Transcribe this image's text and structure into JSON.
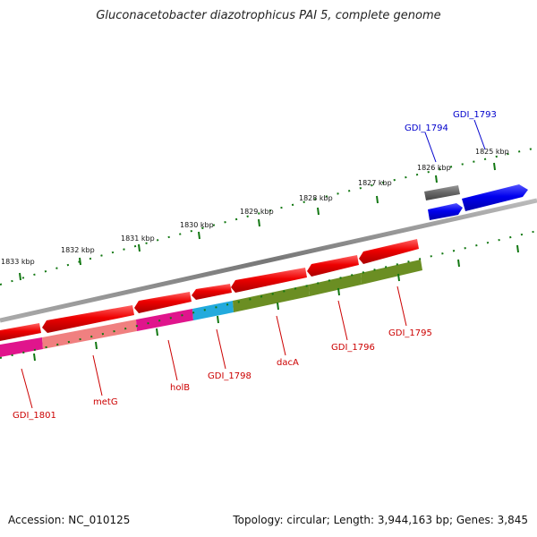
{
  "title": "Gluconacetobacter diazotrophicus PAI 5, complete genome",
  "footer": {
    "accession": "Accession: NC_010125",
    "topology": "Topology: circular; Length: 3,944,163 bp; Genes: 3,845"
  },
  "ticks": [
    "1825 kbp",
    "1826 kbp",
    "1827 kbp",
    "1828 kbp",
    "1829 kbp",
    "1830 kbp",
    "1831 kbp",
    "1832 kbp",
    "1833 kbp"
  ],
  "colors": {
    "backbone": "#888888",
    "cds": "#ee0000",
    "gene_forward": "#0000ee",
    "gene_grey": "#666666",
    "label_reverse": "#cc0000",
    "label_forward": "#0000cc",
    "tick": "#117711",
    "magenta": "#e0158c",
    "salmon": "#f08080",
    "cyan": "#22aadd",
    "olive": "#6b8e23"
  },
  "labels": {
    "gdi_1793": "GDI_1793",
    "gdi_1794": "GDI_1794",
    "gdi_1795": "GDI_1795",
    "gdi_1796": "GDI_1796",
    "daca": "dacA",
    "gdi_1798": "GDI_1798",
    "holb": "holB",
    "metg": "metG",
    "gdi_1801": "GDI_1801"
  }
}
